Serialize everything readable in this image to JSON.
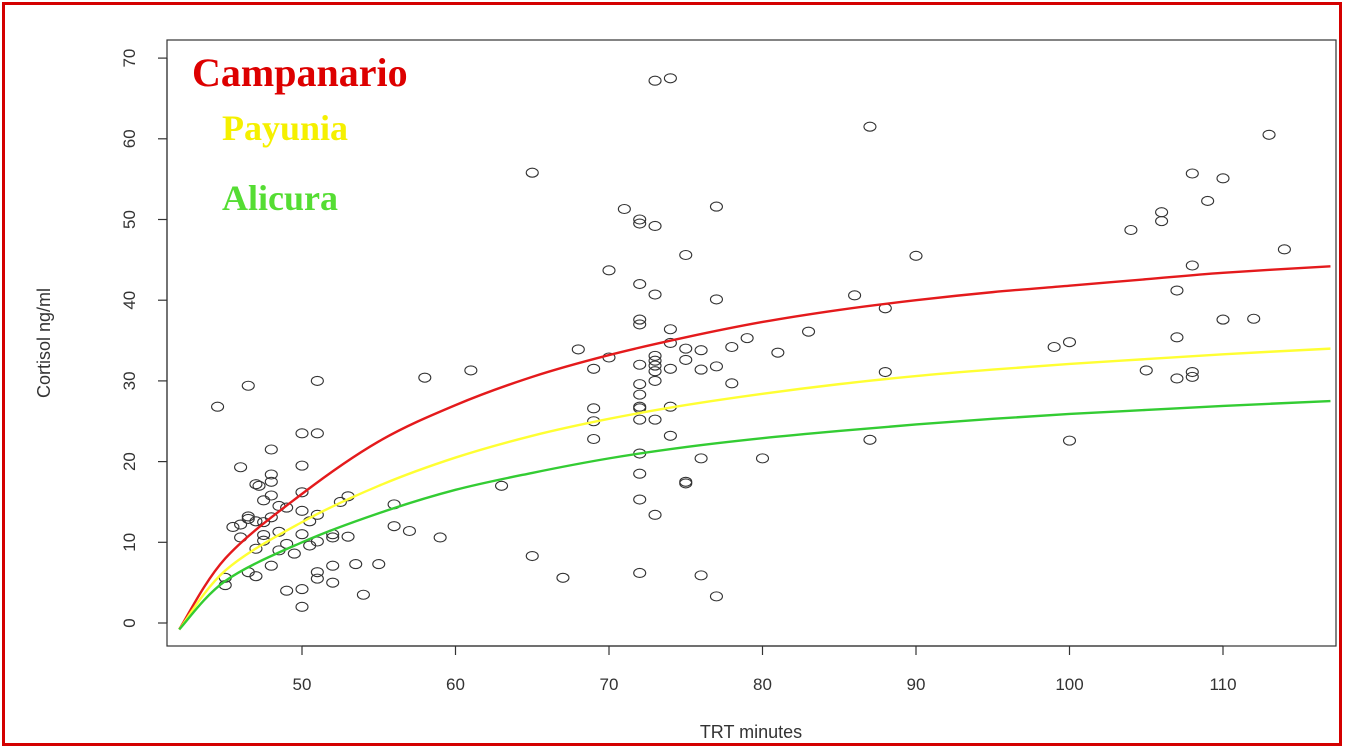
{
  "chart_data": {
    "type": "scatter",
    "xlabel": "TRT minutes",
    "ylabel": "Cortisol ng/ml",
    "xlim": [
      42,
      117
    ],
    "ylim": [
      -2,
      72
    ],
    "x_ticks": [
      50,
      60,
      70,
      80,
      90,
      100,
      110
    ],
    "y_ticks": [
      0,
      10,
      20,
      30,
      40,
      50,
      60,
      70
    ],
    "grid": false,
    "legend_position": "top-left",
    "series": [
      {
        "name": "observations",
        "marker": "open-circle",
        "color": "#333333",
        "points": [
          [
            44.5,
            26.8
          ],
          [
            46,
            19.3
          ],
          [
            46.5,
            29.4
          ],
          [
            47,
            17.2
          ],
          [
            47.2,
            17.0
          ],
          [
            47.5,
            15.2
          ],
          [
            48,
            18.4
          ],
          [
            48,
            21.5
          ],
          [
            48,
            13.1
          ],
          [
            46.5,
            13.2
          ],
          [
            45.5,
            11.9
          ],
          [
            46,
            12.2
          ],
          [
            47,
            12.6
          ],
          [
            47.5,
            10.9
          ],
          [
            48.5,
            11.3
          ],
          [
            49,
            9.8
          ],
          [
            48.5,
            9.0
          ],
          [
            47,
            9.2
          ],
          [
            46.5,
            6.3
          ],
          [
            47,
            5.8
          ],
          [
            45,
            5.6
          ],
          [
            45,
            4.7
          ],
          [
            46,
            10.6
          ],
          [
            47.5,
            10.2
          ],
          [
            48,
            7.1
          ],
          [
            48.5,
            14.5
          ],
          [
            49,
            14.3
          ],
          [
            48,
            15.8
          ],
          [
            48,
            17.5
          ],
          [
            46.5,
            12.9
          ],
          [
            47.5,
            12.5
          ],
          [
            49.5,
            8.6
          ],
          [
            49,
            4.0
          ],
          [
            50,
            4.2
          ],
          [
            50,
            2.0
          ],
          [
            50,
            23.5
          ],
          [
            50,
            19.5
          ],
          [
            50,
            16.2
          ],
          [
            50,
            13.9
          ],
          [
            50.5,
            12.6
          ],
          [
            50,
            11.0
          ],
          [
            50.5,
            9.6
          ],
          [
            51,
            30.0
          ],
          [
            51,
            23.5
          ],
          [
            51,
            13.4
          ],
          [
            51,
            10.1
          ],
          [
            51,
            6.3
          ],
          [
            51,
            5.5
          ],
          [
            52,
            11.0
          ],
          [
            52,
            10.6
          ],
          [
            52,
            7.1
          ],
          [
            52,
            5.0
          ],
          [
            52.5,
            15.0
          ],
          [
            53,
            15.7
          ],
          [
            53,
            10.7
          ],
          [
            53.5,
            7.3
          ],
          [
            54,
            3.5
          ],
          [
            55,
            7.3
          ],
          [
            56,
            14.7
          ],
          [
            56,
            12.0
          ],
          [
            57,
            11.4
          ],
          [
            58,
            30.4
          ],
          [
            59,
            10.6
          ],
          [
            61,
            31.3
          ],
          [
            63,
            17.0
          ],
          [
            65,
            55.8
          ],
          [
            65,
            8.3
          ],
          [
            67,
            5.6
          ],
          [
            68,
            33.9
          ],
          [
            69,
            31.5
          ],
          [
            69,
            26.6
          ],
          [
            69,
            25.0
          ],
          [
            69,
            22.8
          ],
          [
            70,
            43.7
          ],
          [
            70,
            32.9
          ],
          [
            71,
            51.3
          ],
          [
            72,
            49.5
          ],
          [
            72,
            50.0
          ],
          [
            72,
            42.0
          ],
          [
            72,
            37.6
          ],
          [
            72,
            37.0
          ],
          [
            72,
            32.0
          ],
          [
            72,
            29.6
          ],
          [
            72,
            28.3
          ],
          [
            72,
            26.8
          ],
          [
            72,
            26.6
          ],
          [
            72,
            25.2
          ],
          [
            72,
            21.0
          ],
          [
            72,
            18.5
          ],
          [
            72,
            15.3
          ],
          [
            72,
            6.2
          ],
          [
            73,
            67.2
          ],
          [
            73,
            49.2
          ],
          [
            73,
            40.7
          ],
          [
            73,
            33.1
          ],
          [
            73,
            32.5
          ],
          [
            73,
            31.9
          ],
          [
            73,
            31.2
          ],
          [
            73,
            30.0
          ],
          [
            73,
            25.2
          ],
          [
            73,
            13.4
          ],
          [
            74,
            67.5
          ],
          [
            74,
            36.4
          ],
          [
            74,
            34.7
          ],
          [
            74,
            26.8
          ],
          [
            74,
            23.2
          ],
          [
            74,
            31.5
          ],
          [
            75,
            45.6
          ],
          [
            75,
            34.0
          ],
          [
            75,
            32.6
          ],
          [
            75,
            17.5
          ],
          [
            75,
            17.3
          ],
          [
            76,
            33.8
          ],
          [
            76,
            31.4
          ],
          [
            76,
            20.4
          ],
          [
            76,
            5.9
          ],
          [
            77,
            51.6
          ],
          [
            77,
            40.1
          ],
          [
            77,
            31.8
          ],
          [
            77,
            3.3
          ],
          [
            78,
            34.2
          ],
          [
            78,
            29.7
          ],
          [
            79,
            35.3
          ],
          [
            80,
            20.4
          ],
          [
            81,
            33.5
          ],
          [
            83,
            36.1
          ],
          [
            86,
            40.6
          ],
          [
            87,
            61.5
          ],
          [
            87,
            22.7
          ],
          [
            88,
            39.0
          ],
          [
            88,
            31.1
          ],
          [
            90,
            45.5
          ],
          [
            99,
            34.2
          ],
          [
            100,
            34.8
          ],
          [
            100,
            22.6
          ],
          [
            104,
            48.7
          ],
          [
            105,
            31.3
          ],
          [
            106,
            50.9
          ],
          [
            106,
            49.8
          ],
          [
            107,
            41.2
          ],
          [
            107,
            35.4
          ],
          [
            107,
            30.3
          ],
          [
            108,
            55.7
          ],
          [
            108,
            44.3
          ],
          [
            108,
            31.1
          ],
          [
            108,
            30.5
          ],
          [
            109,
            52.3
          ],
          [
            110,
            55.1
          ],
          [
            110,
            37.6
          ],
          [
            112,
            37.7
          ],
          [
            113,
            60.5
          ],
          [
            114,
            46.3
          ]
        ]
      }
    ],
    "curves": [
      {
        "name": "Campanario",
        "color": "#e41a1c",
        "y_at_x": [
          [
            42,
            -0.8
          ],
          [
            45,
            8
          ],
          [
            50,
            16
          ],
          [
            55,
            22.5
          ],
          [
            60,
            27
          ],
          [
            65,
            30.5
          ],
          [
            70,
            33.2
          ],
          [
            75,
            35.4
          ],
          [
            80,
            37.3
          ],
          [
            85,
            38.8
          ],
          [
            90,
            40.0
          ],
          [
            95,
            41.0
          ],
          [
            100,
            41.8
          ],
          [
            105,
            42.6
          ],
          [
            110,
            43.4
          ],
          [
            117,
            44.2
          ]
        ]
      },
      {
        "name": "Payunia",
        "color": "#ffff33",
        "y_at_x": [
          [
            42,
            -0.8
          ],
          [
            45,
            6.5
          ],
          [
            50,
            12.5
          ],
          [
            55,
            17
          ],
          [
            60,
            20.5
          ],
          [
            65,
            23.2
          ],
          [
            70,
            25.3
          ],
          [
            75,
            27.0
          ],
          [
            80,
            28.4
          ],
          [
            85,
            29.6
          ],
          [
            90,
            30.6
          ],
          [
            95,
            31.4
          ],
          [
            100,
            32.1
          ],
          [
            105,
            32.7
          ],
          [
            110,
            33.3
          ],
          [
            117,
            34.0
          ]
        ]
      },
      {
        "name": "Alicura",
        "color": "#33cc33",
        "y_at_x": [
          [
            42,
            -0.8
          ],
          [
            45,
            5.2
          ],
          [
            50,
            10
          ],
          [
            55,
            13.6
          ],
          [
            60,
            16.5
          ],
          [
            65,
            18.6
          ],
          [
            70,
            20.4
          ],
          [
            75,
            21.8
          ],
          [
            80,
            22.9
          ],
          [
            85,
            23.8
          ],
          [
            90,
            24.6
          ],
          [
            95,
            25.3
          ],
          [
            100,
            25.9
          ],
          [
            105,
            26.4
          ],
          [
            110,
            26.9
          ],
          [
            117,
            27.5
          ]
        ]
      }
    ],
    "legend": [
      {
        "label": "Campanario",
        "color": "#dd0000"
      },
      {
        "label": "Payunia",
        "color": "#f5f000"
      },
      {
        "label": "Alicura",
        "color": "#55dd33"
      }
    ]
  }
}
